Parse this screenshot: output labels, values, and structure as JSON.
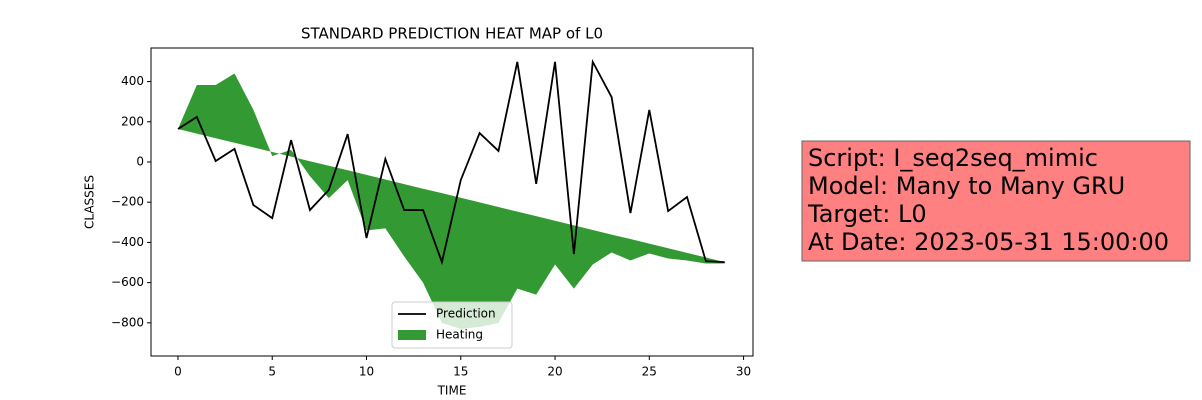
{
  "chart_data": {
    "type": "line",
    "title": "STANDARD PREDICTION HEAT MAP of L0",
    "x_label": "TIME",
    "y_label": "CLASSES",
    "x": [
      0,
      1,
      2,
      3,
      4,
      5,
      6,
      7,
      8,
      9,
      10,
      11,
      12,
      13,
      14,
      15,
      16,
      17,
      18,
      19,
      20,
      21,
      22,
      23,
      24,
      25,
      26,
      27,
      28,
      29
    ],
    "series": [
      {
        "name": "Prediction",
        "color": "#000000",
        "kind": "line",
        "values": [
          164,
          224,
          5,
          65,
          -214,
          -279,
          109,
          -239,
          -139,
          139,
          -378,
          15,
          -239,
          -239,
          -498,
          -90,
          144,
          55,
          498,
          -109,
          498,
          -458,
          498,
          323,
          -254,
          259,
          -244,
          -174,
          -493,
          -498
        ]
      },
      {
        "name": "Heating",
        "color": "#339933",
        "kind": "area",
        "values": [
          164,
          383,
          383,
          440,
          260,
          30,
          60,
          -70,
          -180,
          -90,
          -340,
          -330,
          -470,
          -600,
          -800,
          -830,
          -820,
          -800,
          -630,
          -660,
          -510,
          -630,
          -510,
          -450,
          -490,
          -455,
          -480,
          -490,
          -505,
          -505
        ],
        "base": [
          164,
          141,
          118,
          96,
          73,
          50,
          27,
          4,
          -19,
          -41,
          -64,
          -87,
          -110,
          -133,
          -155,
          -178,
          -201,
          -224,
          -247,
          -269,
          -292,
          -315,
          -338,
          -361,
          -383,
          -406,
          -429,
          -452,
          -475,
          -498
        ]
      }
    ],
    "xlim": [
      -1.43,
      30.5
    ],
    "ylim": [
      -965,
      567
    ],
    "xticks": [
      0,
      5,
      10,
      15,
      20,
      25,
      30
    ],
    "yticks": [
      {
        "value": -800,
        "label": "−800"
      },
      {
        "value": -600,
        "label": "−600"
      },
      {
        "value": -400,
        "label": "−400"
      },
      {
        "value": -200,
        "label": "−200"
      },
      0,
      200,
      400
    ],
    "legend": "lower center",
    "annotation": {
      "lines": [
        "Script: I_seq2seq_mimic",
        "Model: Many to Many GRU",
        "Target: L0",
        "At Date: 2023-05-31 15:00:00"
      ],
      "color": "#ff8080"
    }
  }
}
